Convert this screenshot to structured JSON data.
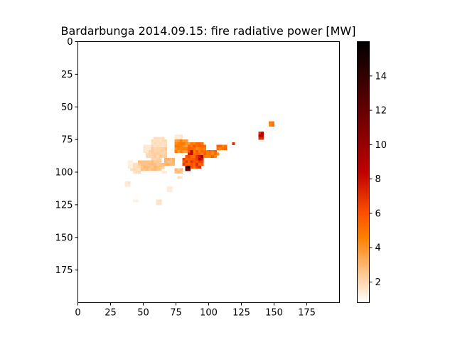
{
  "chart_data": {
    "type": "heatmap",
    "title": "Bardarbunga 2014.09.15: fire radiative power [MW]",
    "xlabel": "",
    "ylabel": "",
    "xlim": [
      0,
      200
    ],
    "ylim": [
      200,
      0
    ],
    "x_ticks": [
      0,
      25,
      50,
      75,
      100,
      125,
      150,
      175
    ],
    "y_ticks": [
      0,
      25,
      50,
      75,
      100,
      125,
      150,
      175
    ],
    "colorbar": {
      "colormap": "gist_heat_r",
      "range": [
        0.8,
        16
      ],
      "ticks": [
        2,
        4,
        6,
        8,
        10,
        12,
        14
      ]
    },
    "grid": false,
    "blobs": [
      {
        "cx": 62,
        "cy": 78,
        "rx": 6,
        "ry": 5,
        "v": 1.8
      },
      {
        "cx": 60,
        "cy": 85,
        "rx": 9,
        "ry": 6,
        "v": 2.2
      },
      {
        "cx": 53,
        "cy": 82,
        "rx": 4,
        "ry": 3,
        "v": 1.5
      },
      {
        "cx": 55,
        "cy": 95,
        "rx": 12,
        "ry": 5,
        "v": 2.8
      },
      {
        "cx": 45,
        "cy": 97,
        "rx": 5,
        "ry": 4,
        "v": 1.9
      },
      {
        "cx": 40,
        "cy": 94,
        "rx": 3,
        "ry": 3,
        "v": 1.3
      },
      {
        "cx": 70,
        "cy": 92,
        "rx": 5,
        "ry": 4,
        "v": 3.2
      },
      {
        "cx": 80,
        "cy": 80,
        "rx": 7,
        "ry": 6,
        "v": 4.5
      },
      {
        "cx": 90,
        "cy": 82,
        "rx": 8,
        "ry": 6,
        "v": 5.5
      },
      {
        "cx": 87,
        "cy": 85,
        "rx": 3,
        "ry": 2,
        "v": 9.5
      },
      {
        "cx": 88,
        "cy": 92,
        "rx": 9,
        "ry": 6,
        "v": 6.5
      },
      {
        "cx": 84,
        "cy": 96,
        "rx": 3,
        "ry": 3,
        "v": 14.5
      },
      {
        "cx": 93,
        "cy": 90,
        "rx": 4,
        "ry": 3,
        "v": 9.8
      },
      {
        "cx": 101,
        "cy": 86,
        "rx": 7,
        "ry": 4,
        "v": 5.3
      },
      {
        "cx": 110,
        "cy": 81,
        "rx": 4,
        "ry": 3,
        "v": 5.2
      },
      {
        "cx": 119,
        "cy": 78,
        "rx": 2,
        "ry": 2,
        "v": 8.0
      },
      {
        "cx": 77,
        "cy": 99,
        "rx": 4,
        "ry": 3,
        "v": 2.8
      },
      {
        "cx": 78,
        "cy": 104,
        "rx": 3,
        "ry": 2,
        "v": 1.7
      },
      {
        "cx": 66,
        "cy": 100,
        "rx": 3,
        "ry": 2,
        "v": 1.5
      },
      {
        "cx": 77,
        "cy": 73,
        "rx": 3,
        "ry": 2,
        "v": 1.5
      },
      {
        "cx": 38,
        "cy": 109,
        "rx": 3,
        "ry": 3,
        "v": 1.6
      },
      {
        "cx": 70,
        "cy": 113,
        "rx": 3,
        "ry": 3,
        "v": 1.4
      },
      {
        "cx": 62,
        "cy": 123,
        "rx": 3,
        "ry": 3,
        "v": 1.8
      },
      {
        "cx": 44,
        "cy": 122,
        "rx": 2,
        "ry": 1,
        "v": 1.3
      },
      {
        "cx": 140,
        "cy": 72,
        "rx": 3,
        "ry": 3,
        "v": 8.5
      },
      {
        "cx": 136,
        "cy": 69,
        "rx": 3,
        "ry": 1,
        "v": 7.0
      },
      {
        "cx": 148,
        "cy": 63,
        "rx": 3,
        "ry": 2,
        "v": 5.0
      },
      {
        "cx": 152,
        "cy": 73,
        "rx": 1,
        "ry": 1,
        "v": 1.2
      }
    ]
  }
}
